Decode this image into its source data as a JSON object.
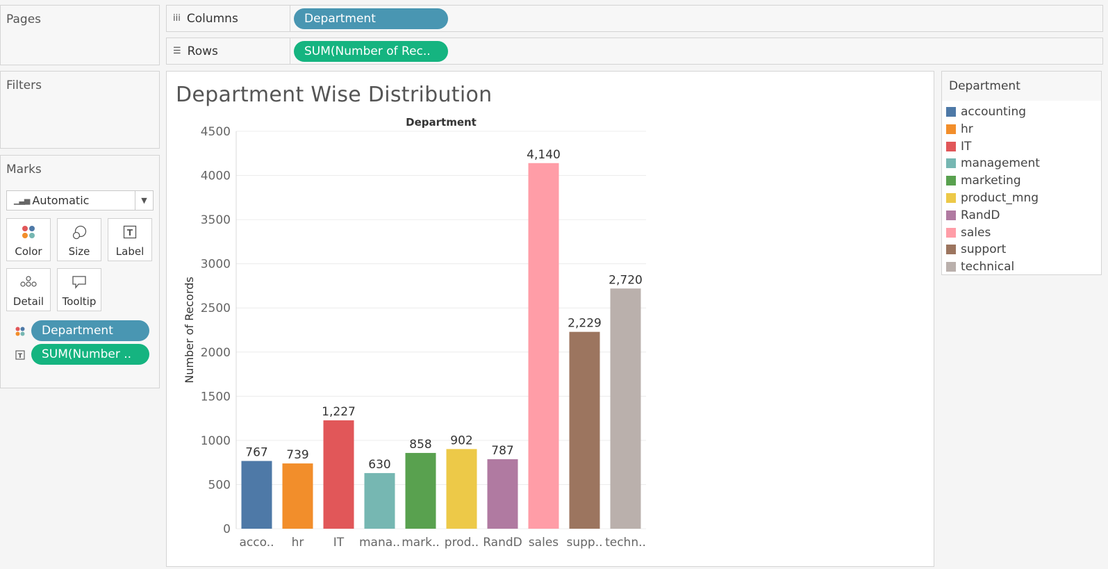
{
  "shelves": {
    "columns_label": "Columns",
    "columns_pill": "Department",
    "rows_label": "Rows",
    "rows_pill": "SUM(Number of Rec.."
  },
  "sidebar": {
    "pages_title": "Pages",
    "filters_title": "Filters",
    "marks_title": "Marks",
    "mark_type": "Automatic",
    "buttons": {
      "color": "Color",
      "size": "Size",
      "label": "Label",
      "detail": "Detail",
      "tooltip": "Tooltip"
    },
    "mark_pills": {
      "color_pill": "Department",
      "label_pill": "SUM(Number .."
    }
  },
  "legend": {
    "title": "Department",
    "items": [
      {
        "label": "accounting",
        "color": "#4e79a7"
      },
      {
        "label": "hr",
        "color": "#f28e2b"
      },
      {
        "label": "IT",
        "color": "#e15759"
      },
      {
        "label": "management",
        "color": "#76b7b2"
      },
      {
        "label": "marketing",
        "color": "#59a14f"
      },
      {
        "label": "product_mng",
        "color": "#edc948"
      },
      {
        "label": "RandD",
        "color": "#b07aa1"
      },
      {
        "label": "sales",
        "color": "#ff9da7"
      },
      {
        "label": "support",
        "color": "#9c755f"
      },
      {
        "label": "technical",
        "color": "#bab0ac"
      }
    ]
  },
  "chart_data": {
    "type": "bar",
    "title": "Department Wise Distribution",
    "column_header": "Department",
    "ylabel": "Number of Records",
    "ylim": [
      0,
      4500
    ],
    "yticks": [
      0,
      500,
      1000,
      1500,
      2000,
      2500,
      3000,
      3500,
      4000,
      4500
    ],
    "categories": [
      "acco..",
      "hr",
      "IT",
      "mana..",
      "mark..",
      "prod..",
      "RandD",
      "sales",
      "supp..",
      "techn.."
    ],
    "values": [
      767,
      739,
      1227,
      630,
      858,
      902,
      787,
      4140,
      2229,
      2720
    ],
    "value_labels": [
      "767",
      "739",
      "1,227",
      "630",
      "858",
      "902",
      "787",
      "4,140",
      "2,229",
      "2,720"
    ],
    "colors": [
      "#4e79a7",
      "#f28e2b",
      "#e15759",
      "#76b7b2",
      "#59a14f",
      "#edc948",
      "#b07aa1",
      "#ff9da7",
      "#9c755f",
      "#bab0ac"
    ],
    "grid": true
  }
}
